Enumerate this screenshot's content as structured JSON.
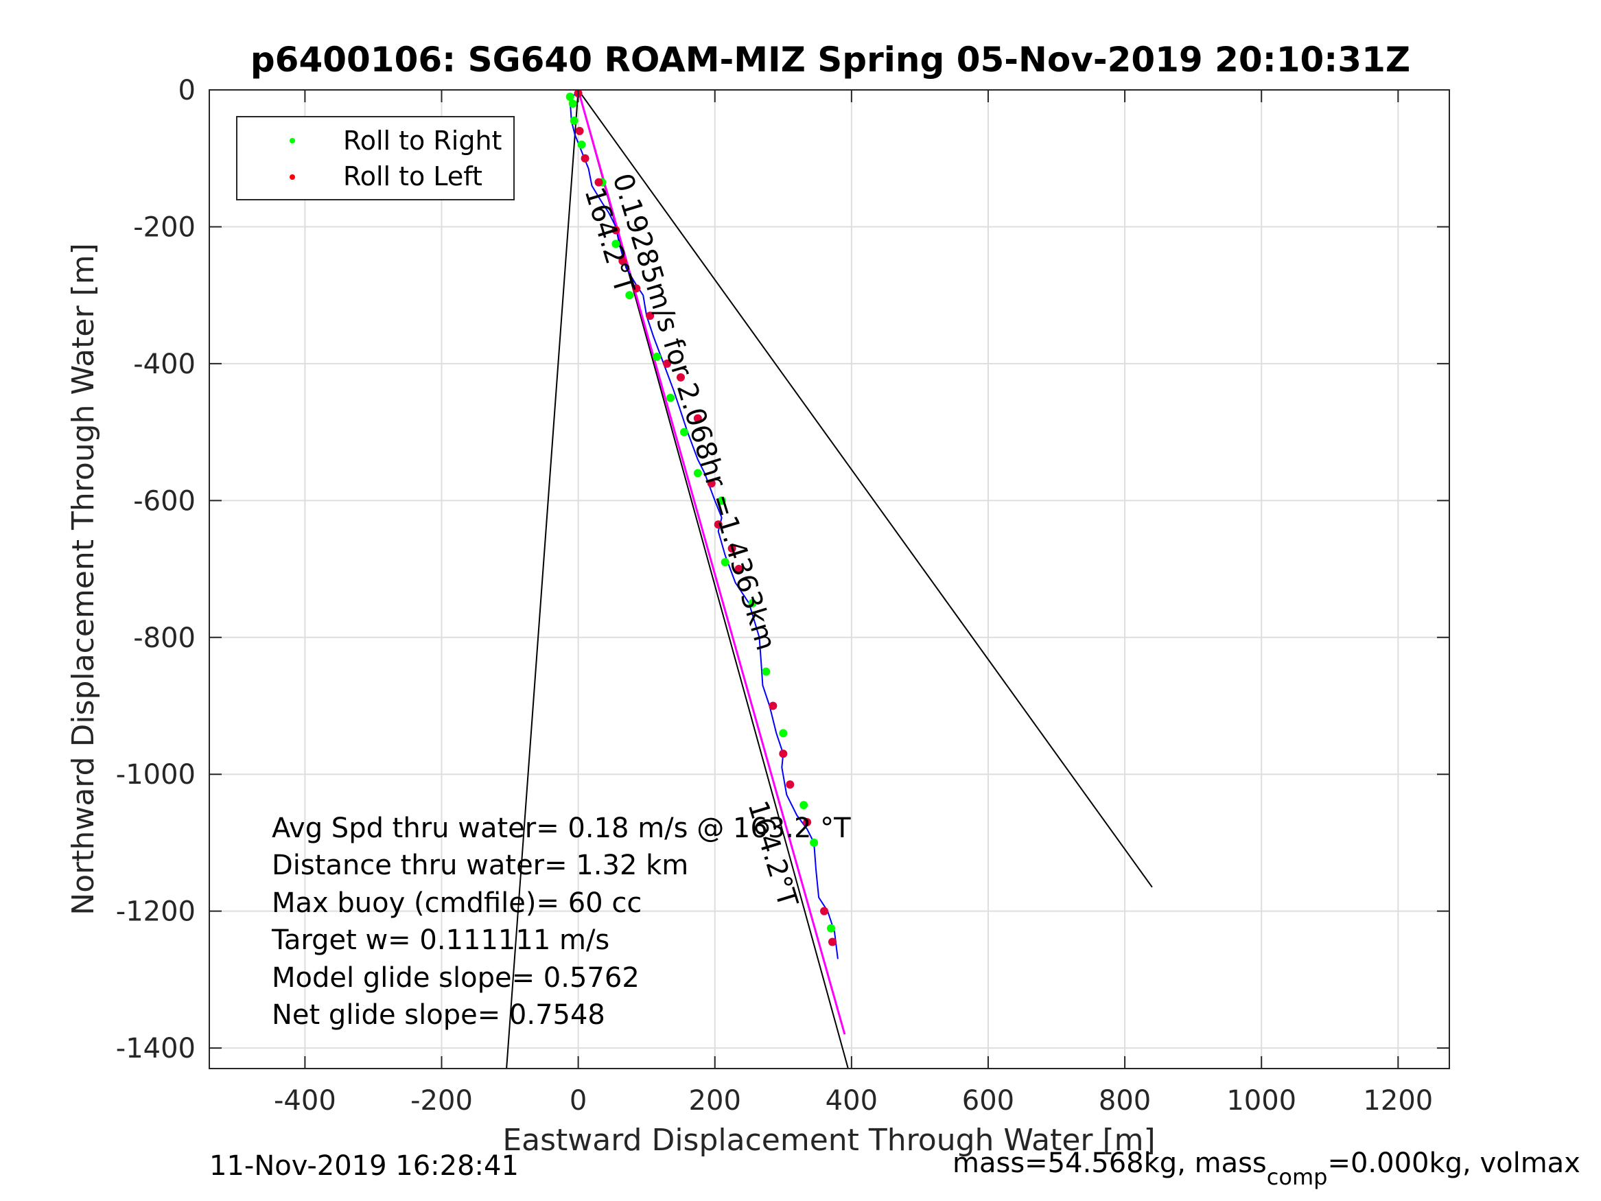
{
  "chart_data": {
    "type": "line",
    "title": "p6400106: SG640 ROAM-MIZ Spring 05-Nov-2019 20:10:31Z",
    "xlabel": "Eastward Displacement Through Water [m]",
    "ylabel": "Northward Displacement Through Water [m]",
    "xlim": [
      -540,
      1275
    ],
    "ylim": [
      -1430,
      0
    ],
    "x_ticks": [
      -400,
      -200,
      0,
      200,
      400,
      600,
      800,
      1000,
      1200
    ],
    "y_ticks": [
      0,
      -200,
      -400,
      -600,
      -800,
      -1000,
      -1200,
      -1400
    ],
    "x_tick_labels": [
      "-400",
      "-200",
      "0",
      "200",
      "400",
      "600",
      "800",
      "1000",
      "1200"
    ],
    "y_tick_labels": [
      "0",
      "-200",
      "-400",
      "-600",
      "-800",
      "-1000",
      "-1200",
      "-1400"
    ],
    "grid": true,
    "legend": {
      "location": "top-left",
      "entries": [
        {
          "label": "Roll to Right",
          "color": "#00ff00"
        },
        {
          "label": "Roll to Left",
          "color": "#ff0000"
        }
      ]
    },
    "colors": {
      "track": "#0000ff",
      "heading_line": "#ff00ff",
      "reference_lines": "#000000",
      "roll_right": "#00ff00",
      "roll_left": "#e0003a"
    },
    "track": {
      "x": [
        0,
        -12,
        -10,
        -5,
        5,
        15,
        20,
        35,
        45,
        55,
        60,
        70,
        85,
        95,
        100,
        110,
        125,
        140,
        150,
        160,
        175,
        185,
        200,
        210,
        205,
        215,
        230,
        250,
        265,
        268,
        270,
        280,
        290,
        300,
        298,
        305,
        320,
        335,
        345,
        348,
        352,
        365,
        375,
        380
      ],
      "y": [
        0,
        -15,
        -45,
        -65,
        -90,
        -115,
        -140,
        -165,
        -180,
        -200,
        -225,
        -260,
        -285,
        -300,
        -330,
        -360,
        -400,
        -440,
        -470,
        -500,
        -540,
        -560,
        -600,
        -625,
        -645,
        -680,
        -720,
        -750,
        -800,
        -840,
        -870,
        -900,
        -940,
        -970,
        -990,
        -1030,
        -1060,
        -1080,
        -1100,
        -1140,
        -1180,
        -1200,
        -1230,
        -1270
      ]
    },
    "heading_line": {
      "x": [
        0,
        390
      ],
      "y": [
        0,
        -1380
      ]
    },
    "reference_lines": [
      {
        "x": [
          0,
          -105
        ],
        "y": [
          0,
          -1430
        ]
      },
      {
        "x": [
          0,
          840
        ],
        "y": [
          0,
          -1165
        ]
      },
      {
        "x": [
          0,
          395
        ],
        "y": [
          0,
          -1430
        ]
      }
    ],
    "roll_right": {
      "x": [
        -12,
        -8,
        -6,
        5,
        35,
        55,
        75,
        115,
        135,
        155,
        175,
        210,
        215,
        255,
        275,
        300,
        330,
        345,
        370
      ],
      "y": [
        -10,
        -20,
        -45,
        -80,
        -135,
        -225,
        -300,
        -390,
        -450,
        -500,
        -560,
        -600,
        -690,
        -750,
        -850,
        -940,
        -1045,
        -1100,
        -1225
      ]
    },
    "roll_left": {
      "x": [
        0,
        2,
        10,
        30,
        55,
        65,
        85,
        105,
        130,
        150,
        175,
        195,
        205,
        225,
        235,
        285,
        300,
        310,
        335,
        360,
        372
      ],
      "y": [
        -5,
        -60,
        -100,
        -135,
        -205,
        -250,
        -290,
        -330,
        -400,
        -420,
        -480,
        -575,
        -635,
        -670,
        -700,
        -900,
        -970,
        -1015,
        -1070,
        -1200,
        -1245
      ]
    },
    "annotations": {
      "speed_label": "0.19285m/s for 2.068hr =1.4363km",
      "heading_label_top": "164.2°T",
      "heading_label_bottom": "164.2°T"
    },
    "stats": [
      "Avg Spd thru water=  0.18 m/s @ 163.2 °T",
      "Distance thru water=  1.32 km",
      "Max buoy (cmdfile)= 60 cc",
      "Target w= 0.111111 m/s",
      "Model glide slope= 0.5762",
      "Net glide slope= 0.7548"
    ]
  },
  "footer": {
    "timestamp": "11-Nov-2019 16:28:41",
    "mass_text_1": "mass=54.568kg, mass",
    "mass_sub": "comp",
    "mass_text_2": "=0.000kg, volmax"
  }
}
